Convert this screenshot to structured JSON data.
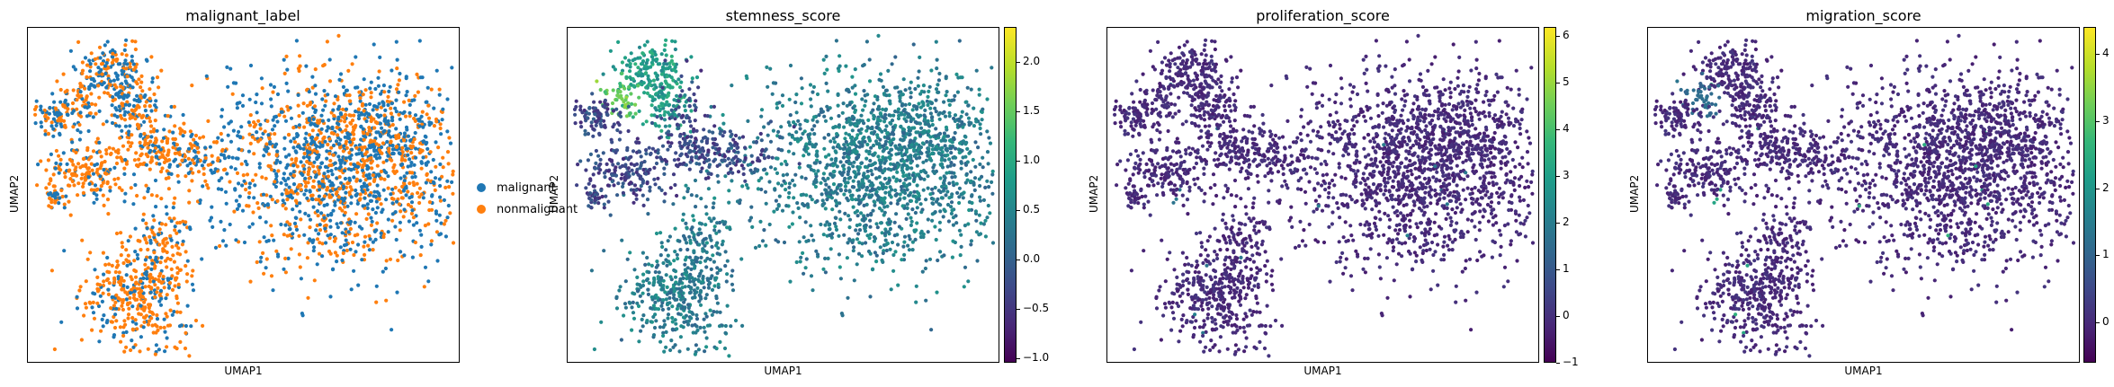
{
  "chart_data": [
    {
      "type": "scatter",
      "title": "malignant_label",
      "xlabel": "UMAP1",
      "ylabel": "UMAP2",
      "legend_position": "right",
      "legend": [
        {
          "label": "malignant",
          "color": "#1f77b4"
        },
        {
          "label": "nonmalignant",
          "color": "#ff7f0e"
        }
      ],
      "color_mode": "categorical"
    },
    {
      "type": "scatter",
      "title": "stemness_score",
      "xlabel": "UMAP1",
      "ylabel": "UMAP2",
      "colorbar": {
        "min": -1.05,
        "max": 2.35,
        "ticks": [
          -1.0,
          -0.5,
          0.0,
          0.5,
          1.0,
          1.5,
          2.0
        ],
        "tick_labels": [
          "−1.0",
          "−0.5",
          "0.0",
          "0.5",
          "1.0",
          "1.5",
          "2.0"
        ],
        "colormap": "viridis"
      },
      "color_mode": "stemness"
    },
    {
      "type": "scatter",
      "title": "proliferation_score",
      "xlabel": "UMAP1",
      "ylabel": "UMAP2",
      "colorbar": {
        "min": -1.0,
        "max": 6.2,
        "ticks": [
          -1,
          0,
          1,
          2,
          3,
          4,
          5,
          6
        ],
        "tick_labels": [
          "−1",
          "0",
          "1",
          "2",
          "3",
          "4",
          "5",
          "6"
        ],
        "colormap": "viridis"
      },
      "color_mode": "proliferation"
    },
    {
      "type": "scatter",
      "title": "migration_score",
      "xlabel": "UMAP1",
      "ylabel": "UMAP2",
      "colorbar": {
        "min": -0.6,
        "max": 4.4,
        "ticks": [
          0,
          1,
          2,
          3,
          4
        ],
        "tick_labels": [
          "0",
          "1",
          "2",
          "3",
          "4"
        ],
        "colormap": "viridis"
      },
      "color_mode": "migration"
    }
  ]
}
